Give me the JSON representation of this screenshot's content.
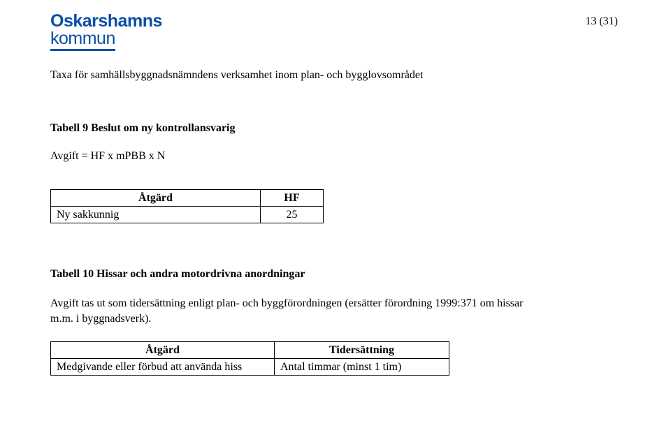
{
  "header": {
    "logo_line1": "Oskarshamns",
    "logo_line2": "kommun",
    "page_number": "13 (31)",
    "sub_heading": "Taxa för samhällsbyggnadsnämndens verksamhet inom plan- och bygglovsområdet"
  },
  "section1": {
    "title": "Tabell 9 Beslut om ny kontrollansvarig",
    "formula": "Avgift = HF x mPBB x N",
    "table": {
      "header_col1": "Åtgärd",
      "header_col2": "HF",
      "rows": [
        {
          "label": "Ny sakkunnig",
          "hf": "25"
        }
      ]
    }
  },
  "section2": {
    "title": "Tabell 10 Hissar och andra motordrivna anordningar",
    "paragraph": "Avgift tas ut som tidersättning enligt plan- och byggförordningen (ersätter förordning 1999:371 om hissar m.m. i byggnadsverk).",
    "table": {
      "header_col1": "Åtgärd",
      "header_col2": "Tidersättning",
      "rows": [
        {
          "label": "Medgivande eller förbud att använda hiss",
          "value": "Antal timmar (minst 1 tim)"
        }
      ]
    }
  }
}
